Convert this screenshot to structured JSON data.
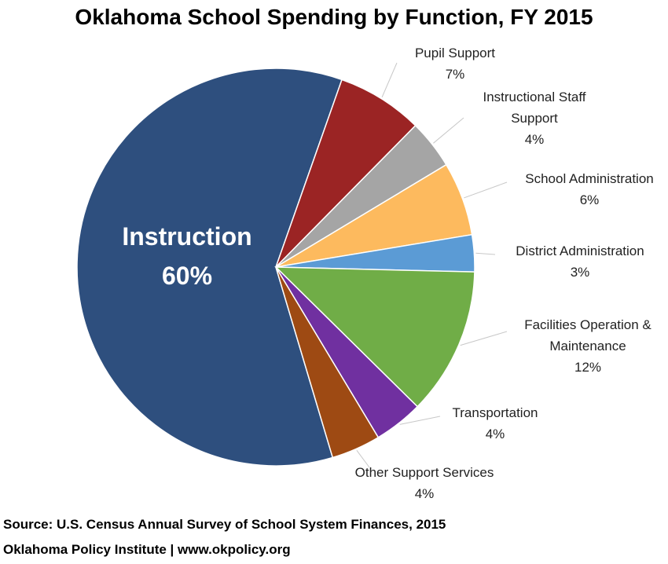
{
  "chart_data": {
    "type": "pie",
    "title": "Oklahoma School Spending by Function, FY 2015",
    "categories": [
      "Instruction",
      "Pupil Support",
      "Instructional Staff Support",
      "School Administration",
      "District Administration",
      "Facilities Operation & Maintenance",
      "Transportation",
      "Other Support Services"
    ],
    "values": [
      60,
      7,
      4,
      6,
      3,
      12,
      4,
      4
    ],
    "value_labels": [
      "60%",
      "7%",
      "4%",
      "6%",
      "3%",
      "12%",
      "4%",
      "4%"
    ],
    "colors": [
      "#2e4f7e",
      "#9b2424",
      "#a5a5a5",
      "#fdba5e",
      "#5b9bd5",
      "#70ad47",
      "#7030a0",
      "#9e4a13"
    ],
    "source": "Source: U.S. Census Annual Survey of School System Finances, 2015",
    "credit": "Oklahoma Policy Institute | www.okpolicy.org"
  }
}
